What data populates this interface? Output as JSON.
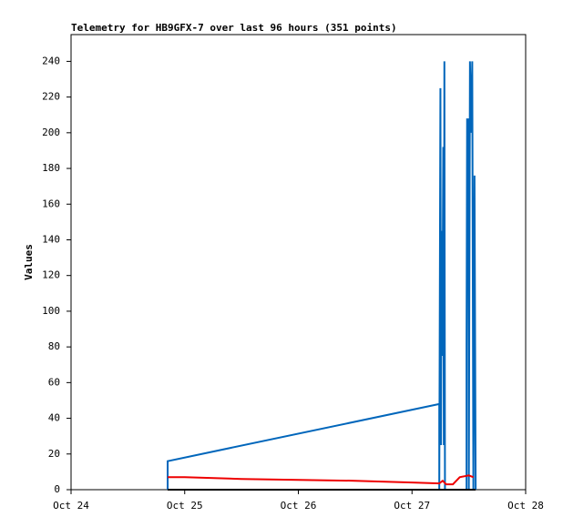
{
  "chart_data": {
    "type": "line",
    "title": "Telemetry for HB9GFX-7 over last 96 hours (351 points)",
    "y_label": "Values",
    "xlim": [
      0,
      4
    ],
    "xticks": [
      {
        "value": 0,
        "label": "Oct 24"
      },
      {
        "value": 1,
        "label": "Oct 25"
      },
      {
        "value": 2,
        "label": "Oct 26"
      },
      {
        "value": 3,
        "label": "Oct 27"
      },
      {
        "value": 4,
        "label": "Oct 28"
      }
    ],
    "ylim": [
      0,
      255
    ],
    "yticks": [
      0,
      20,
      40,
      60,
      80,
      100,
      120,
      140,
      160,
      180,
      200,
      220,
      240
    ],
    "grid": false,
    "series": [
      {
        "color": "#0066bb",
        "x": [
          0.85,
          0.85,
          3.24,
          3.24,
          3.25,
          3.255,
          3.26,
          3.265,
          3.27,
          3.275,
          3.28,
          3.285,
          3.29,
          3.48,
          3.48,
          3.485,
          3.49,
          3.495,
          3.5,
          3.51,
          3.52,
          3.53,
          3.54,
          3.55,
          3.56
        ],
        "values": [
          0,
          16,
          48,
          0,
          225,
          25,
          145,
          75,
          120,
          192,
          25,
          240,
          0,
          0,
          80,
          208,
          160,
          208,
          0,
          240,
          200,
          240,
          0,
          176,
          0
        ]
      },
      {
        "color": "#ee0000",
        "x": [
          0.85,
          1.0,
          1.5,
          2.0,
          2.5,
          3.0,
          3.24,
          3.27,
          3.3,
          3.36,
          3.39,
          3.42,
          3.5,
          3.54
        ],
        "values": [
          7,
          7,
          6,
          5.5,
          5,
          4,
          3.5,
          5,
          3,
          3,
          5,
          7,
          8,
          7
        ]
      },
      {
        "color": "#000000",
        "x": [
          0.85,
          3.56
        ],
        "values": [
          0,
          0
        ]
      }
    ]
  }
}
